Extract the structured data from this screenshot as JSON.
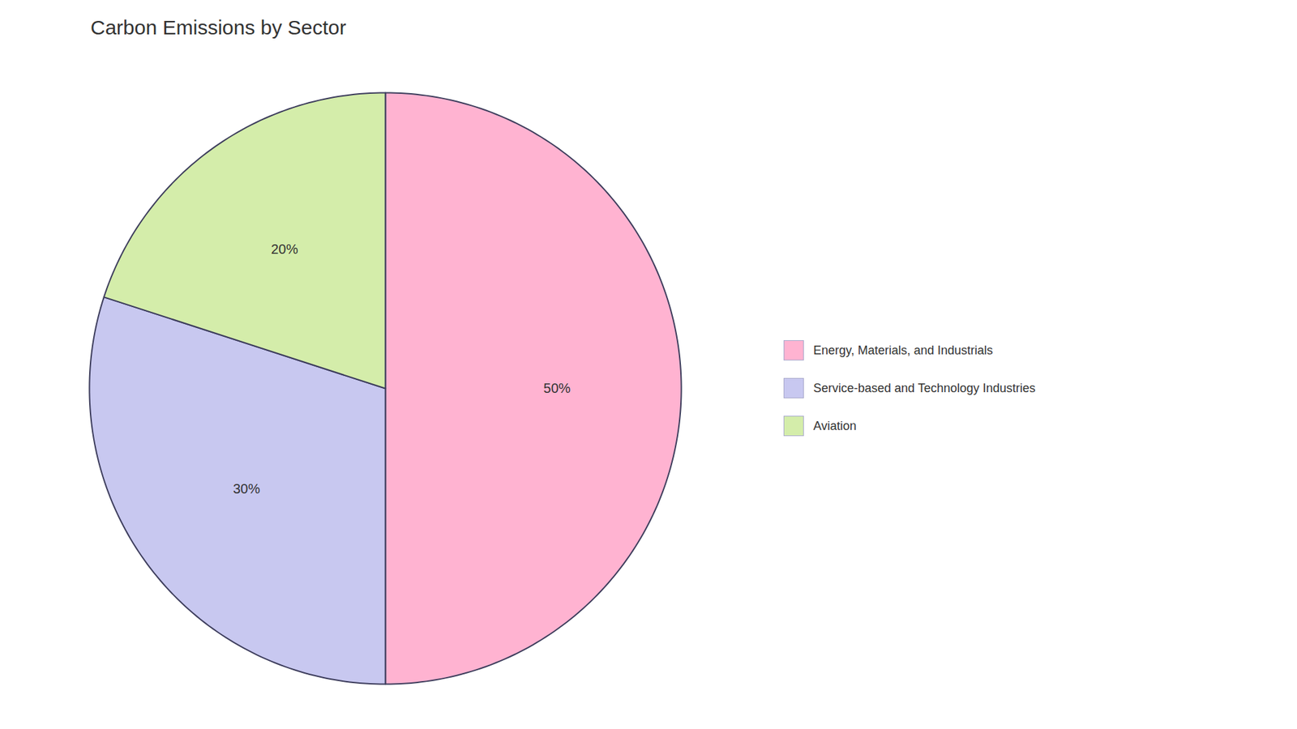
{
  "chart_data": {
    "type": "pie",
    "title": "Carbon Emissions by Sector",
    "categories": [
      "Energy, Materials, and Industrials",
      "Service-based and Technology Industries",
      "Aviation"
    ],
    "values": [
      50,
      30,
      20
    ],
    "value_labels": [
      "50%",
      "30%",
      "20%"
    ],
    "colors": [
      "#FFB3D1",
      "#C8C8F0",
      "#D4EDAA"
    ],
    "data_labels": true,
    "legend": "right"
  }
}
